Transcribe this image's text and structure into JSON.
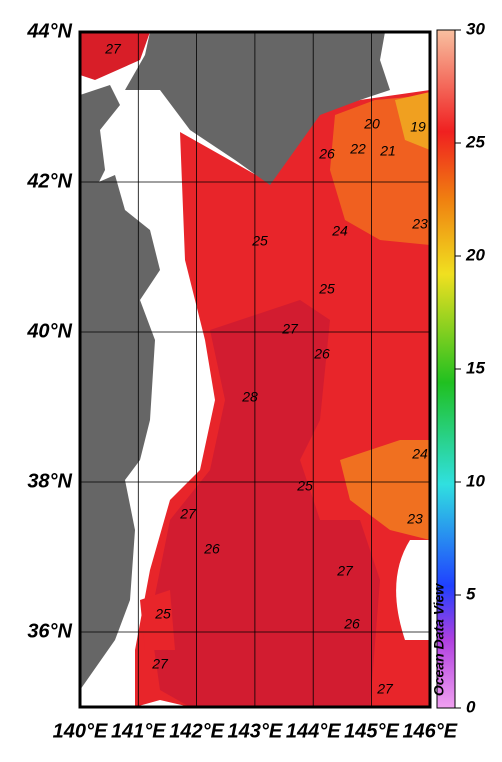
{
  "map": {
    "lat_labels": [
      "44°N",
      "42°N",
      "40°N",
      "38°N",
      "36°N"
    ],
    "lon_labels": [
      "140°E",
      "141°E",
      "142°E",
      "143°E",
      "144°E",
      "145°E",
      "146°E"
    ],
    "colorbar": {
      "lim": [
        0,
        30
      ],
      "ticks": [
        0,
        5,
        10,
        15,
        20,
        25,
        30
      ]
    },
    "contour_labels": [
      "27",
      "20",
      "19",
      "26",
      "22",
      "21",
      "24",
      "23",
      "25",
      "25",
      "27",
      "26",
      "28",
      "24",
      "25",
      "27",
      "23",
      "26",
      "27",
      "25",
      "26",
      "27",
      "27"
    ],
    "credit": "Ocean Data View"
  }
}
